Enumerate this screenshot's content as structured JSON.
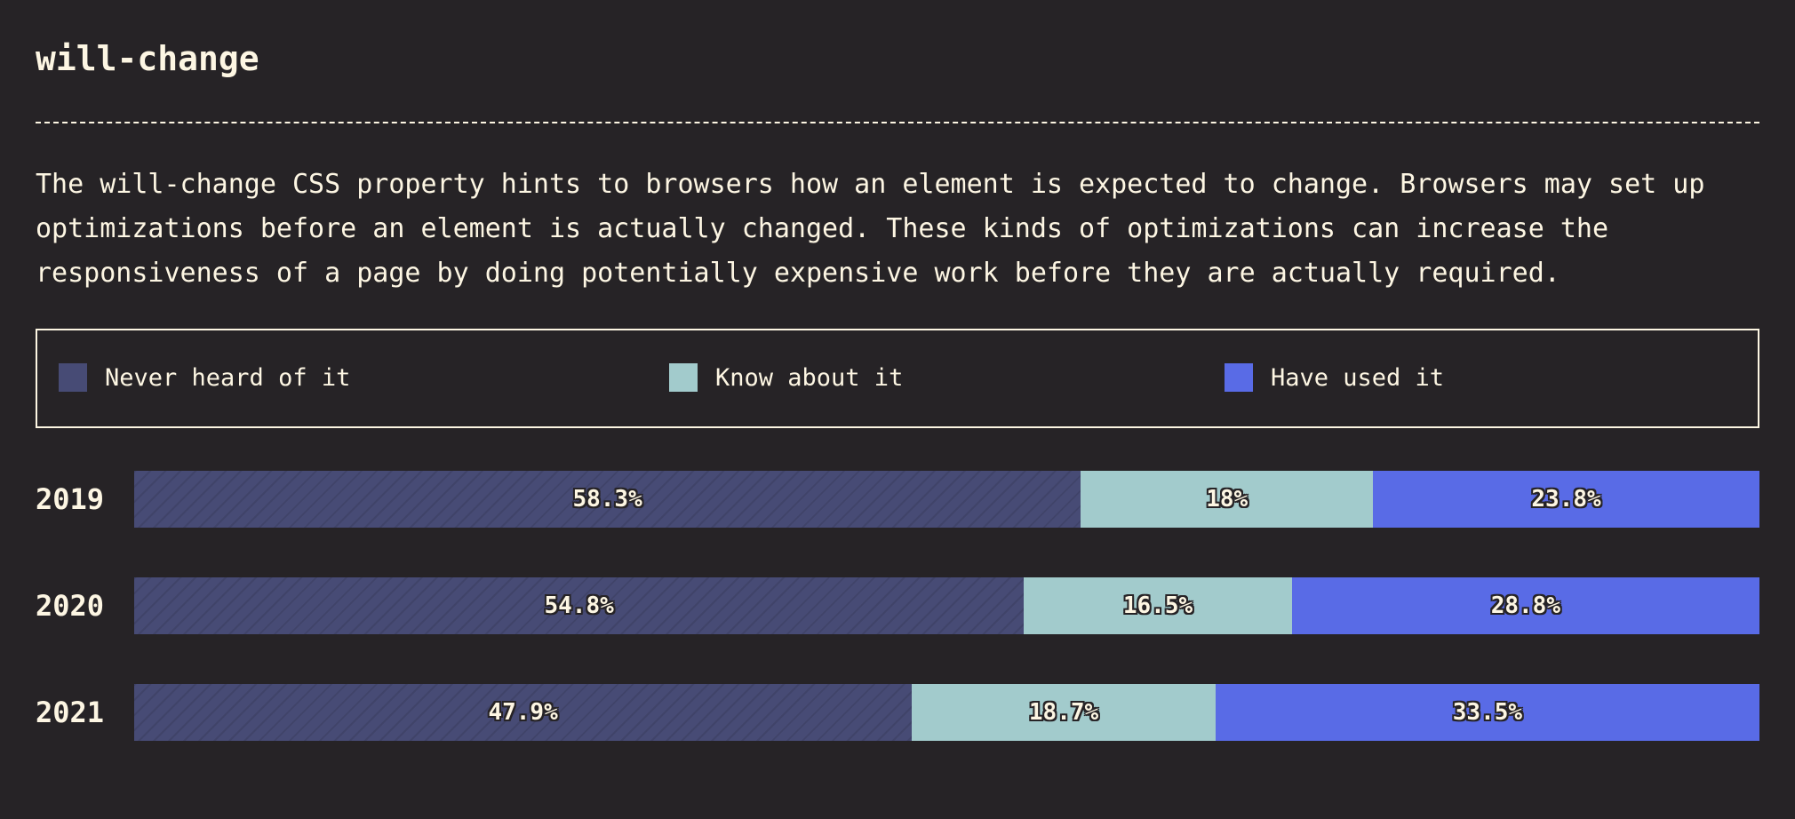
{
  "title": "will-change",
  "description": "The will-change CSS property hints to browsers how an element is expected to change. Browsers may set up optimizations before an element is actually changed. These kinds of optimizations can increase the responsiveness of a page by doing potentially expensive work before they are actually required.",
  "chart_data": {
    "type": "bar",
    "orientation": "horizontal",
    "stacked": true,
    "normalized": true,
    "title": "will-change",
    "legend_position": "top",
    "categories": [
      "2019",
      "2020",
      "2021"
    ],
    "series": [
      {
        "name": "Never heard of it",
        "color": "#474b75",
        "values": [
          58.3,
          54.8,
          47.9
        ],
        "labels": [
          "58.3%",
          "54.8%",
          "47.9%"
        ]
      },
      {
        "name": "Know about it",
        "color": "#a2cbcc",
        "values": [
          18,
          16.5,
          18.7
        ],
        "labels": [
          "18%",
          "16.5%",
          "18.7%"
        ]
      },
      {
        "name": "Have used it",
        "color": "#596be6",
        "values": [
          23.8,
          28.8,
          33.5
        ],
        "labels": [
          "23.8%",
          "28.8%",
          "33.5%"
        ]
      }
    ]
  }
}
